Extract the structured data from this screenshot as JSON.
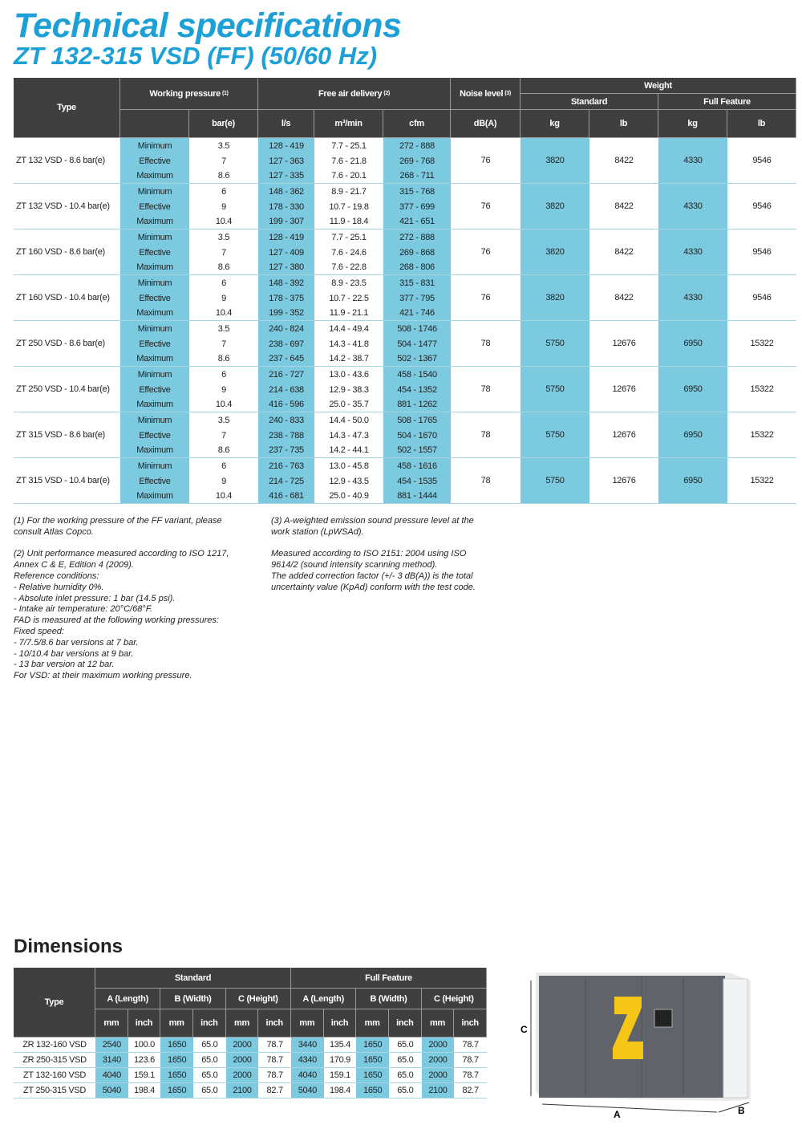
{
  "title": "Technical specifications",
  "subtitle": "ZT 132-315 VSD (FF) (50/60 Hz)",
  "spec": {
    "headers": {
      "type": "Type",
      "working_pressure": "Working pressure",
      "wp_note": "(1)",
      "fad": "Free air delivery",
      "fad_note": "(2)",
      "noise": "Noise level",
      "noise_note": "(3)",
      "weight": "Weight",
      "standard": "Standard",
      "full_feature": "Full Feature",
      "units": [
        "bar(e)",
        "l/s",
        "m³/min",
        "cfm",
        "dB(A)",
        "kg",
        "lb",
        "kg",
        "lb"
      ]
    },
    "groups": [
      {
        "type": "ZT 132 VSD - 8.6 bar(e)",
        "noise": "76",
        "std_kg": "3820",
        "std_lb": "8422",
        "ff_kg": "4330",
        "ff_lb": "9546",
        "levels": [
          {
            "label": "Minimum",
            "pressure": "3.5",
            "ls": "128 - 419",
            "m3": "7.7 - 25.1",
            "cfm": "272 - 888"
          },
          {
            "label": "Effective",
            "pressure": "7",
            "ls": "127 - 363",
            "m3": "7.6 - 21.8",
            "cfm": "269 - 768"
          },
          {
            "label": "Maximum",
            "pressure": "8.6",
            "ls": "127 - 335",
            "m3": "7.6 - 20.1",
            "cfm": "268 - 711"
          }
        ]
      },
      {
        "type": "ZT 132 VSD - 10.4 bar(e)",
        "noise": "76",
        "std_kg": "3820",
        "std_lb": "8422",
        "ff_kg": "4330",
        "ff_lb": "9546",
        "levels": [
          {
            "label": "Minimum",
            "pressure": "6",
            "ls": "148 - 362",
            "m3": "8.9 - 21.7",
            "cfm": "315 - 768"
          },
          {
            "label": "Effective",
            "pressure": "9",
            "ls": "178 - 330",
            "m3": "10.7 - 19.8",
            "cfm": "377 - 699"
          },
          {
            "label": "Maximum",
            "pressure": "10.4",
            "ls": "199 - 307",
            "m3": "11.9 - 18.4",
            "cfm": "421 - 651"
          }
        ]
      },
      {
        "type": "ZT 160 VSD - 8.6 bar(e)",
        "noise": "76",
        "std_kg": "3820",
        "std_lb": "8422",
        "ff_kg": "4330",
        "ff_lb": "9546",
        "levels": [
          {
            "label": "Minimum",
            "pressure": "3.5",
            "ls": "128 - 419",
            "m3": "7.7 - 25.1",
            "cfm": "272 - 888"
          },
          {
            "label": "Effective",
            "pressure": "7",
            "ls": "127 - 409",
            "m3": "7.6 - 24.6",
            "cfm": "269 - 868"
          },
          {
            "label": "Maximum",
            "pressure": "8.6",
            "ls": "127 - 380",
            "m3": "7.6 - 22.8",
            "cfm": "268 - 806"
          }
        ]
      },
      {
        "type": "ZT 160 VSD - 10.4 bar(e)",
        "noise": "76",
        "std_kg": "3820",
        "std_lb": "8422",
        "ff_kg": "4330",
        "ff_lb": "9546",
        "levels": [
          {
            "label": "Minimum",
            "pressure": "6",
            "ls": "148 - 392",
            "m3": "8.9 - 23.5",
            "cfm": "315 - 831"
          },
          {
            "label": "Effective",
            "pressure": "9",
            "ls": "178 - 375",
            "m3": "10.7 - 22.5",
            "cfm": "377 - 795"
          },
          {
            "label": "Maximum",
            "pressure": "10.4",
            "ls": "199 - 352",
            "m3": "11.9 - 21.1",
            "cfm": "421 - 746"
          }
        ]
      },
      {
        "type": "ZT 250 VSD - 8.6 bar(e)",
        "noise": "78",
        "std_kg": "5750",
        "std_lb": "12676",
        "ff_kg": "6950",
        "ff_lb": "15322",
        "levels": [
          {
            "label": "Minimum",
            "pressure": "3.5",
            "ls": "240 - 824",
            "m3": "14.4 - 49.4",
            "cfm": "508 - 1746"
          },
          {
            "label": "Effective",
            "pressure": "7",
            "ls": "238 - 697",
            "m3": "14.3 - 41.8",
            "cfm": "504 - 1477"
          },
          {
            "label": "Maximum",
            "pressure": "8.6",
            "ls": "237 - 645",
            "m3": "14.2 - 38.7",
            "cfm": "502 - 1367"
          }
        ]
      },
      {
        "type": "ZT 250 VSD - 10.4 bar(e)",
        "noise": "78",
        "std_kg": "5750",
        "std_lb": "12676",
        "ff_kg": "6950",
        "ff_lb": "15322",
        "levels": [
          {
            "label": "Minimum",
            "pressure": "6",
            "ls": "216 - 727",
            "m3": "13.0 - 43.6",
            "cfm": "458 - 1540"
          },
          {
            "label": "Effective",
            "pressure": "9",
            "ls": "214 - 638",
            "m3": "12.9 - 38.3",
            "cfm": "454 - 1352"
          },
          {
            "label": "Maximum",
            "pressure": "10.4",
            "ls": "416 - 596",
            "m3": "25.0 - 35.7",
            "cfm": "881 - 1262"
          }
        ]
      },
      {
        "type": "ZT 315 VSD - 8.6 bar(e)",
        "noise": "78",
        "std_kg": "5750",
        "std_lb": "12676",
        "ff_kg": "6950",
        "ff_lb": "15322",
        "levels": [
          {
            "label": "Minimum",
            "pressure": "3.5",
            "ls": "240 - 833",
            "m3": "14.4 - 50.0",
            "cfm": "508 - 1765"
          },
          {
            "label": "Effective",
            "pressure": "7",
            "ls": "238 - 788",
            "m3": "14.3 - 47.3",
            "cfm": "504 - 1670"
          },
          {
            "label": "Maximum",
            "pressure": "8.6",
            "ls": "237 - 735",
            "m3": "14.2 - 44.1",
            "cfm": "502 - 1557"
          }
        ]
      },
      {
        "type": "ZT 315 VSD - 10.4 bar(e)",
        "noise": "78",
        "std_kg": "5750",
        "std_lb": "12676",
        "ff_kg": "6950",
        "ff_lb": "15322",
        "levels": [
          {
            "label": "Minimum",
            "pressure": "6",
            "ls": "216 - 763",
            "m3": "13.0 - 45.8",
            "cfm": "458 - 1616"
          },
          {
            "label": "Effective",
            "pressure": "9",
            "ls": "214 - 725",
            "m3": "12.9 - 43.5",
            "cfm": "454 - 1535"
          },
          {
            "label": "Maximum",
            "pressure": "10.4",
            "ls": "416 - 681",
            "m3": "25.0 - 40.9",
            "cfm": "881 - 1444"
          }
        ]
      }
    ]
  },
  "notes_left": [
    [
      "(1) For the working pressure of the FF variant, please",
      "consult Atlas Copco."
    ],
    [
      "(2) Unit performance measured according to ISO 1217,",
      "Annex C & E, Edition 4 (2009).",
      "Reference conditions:",
      " - Relative humidity 0%.",
      " - Absolute inlet pressure: 1 bar (14.5 psi).",
      " - Intake air temperature: 20°C/68°F.",
      "FAD is measured at the following working pressures:",
      "Fixed speed:",
      " - 7/7.5/8.6 bar versions at 7 bar.",
      " - 10/10.4 bar versions at 9 bar.",
      " - 13 bar version at 12 bar.",
      "For VSD: at their maximum working pressure."
    ]
  ],
  "notes_right": [
    [
      "(3) A-weighted emission sound pressure level at the",
      "work station (LpWSAd)."
    ],
    [
      "Measured according to ISO 2151: 2004 using ISO",
      "9614/2 (sound intensity scanning method).",
      "The added correction factor (+/- 3 dB(A)) is the total",
      "uncertainty value (KpAd) conform with the test code."
    ]
  ],
  "dimensions": {
    "title": "Dimensions",
    "headers": {
      "type": "Type",
      "standard": "Standard",
      "full_feature": "Full Feature",
      "dims": [
        "A (Length)",
        "B (Width)",
        "C (Height)"
      ],
      "units": [
        "mm",
        "inch"
      ]
    },
    "rows": [
      {
        "type": "ZR 132-160 VSD",
        "values": [
          "2540",
          "100.0",
          "1650",
          "65.0",
          "2000",
          "78.7",
          "3440",
          "135.4",
          "1650",
          "65.0",
          "2000",
          "78.7"
        ]
      },
      {
        "type": "ZR 250-315 VSD",
        "values": [
          "3140",
          "123.6",
          "1650",
          "65.0",
          "2000",
          "78.7",
          "4340",
          "170.9",
          "1650",
          "65.0",
          "2000",
          "78.7"
        ]
      },
      {
        "type": "ZT 132-160 VSD",
        "values": [
          "4040",
          "159.1",
          "1650",
          "65.0",
          "2000",
          "78.7",
          "4040",
          "159.1",
          "1650",
          "65.0",
          "2000",
          "78.7"
        ]
      },
      {
        "type": "ZT 250-315 VSD",
        "values": [
          "5040",
          "198.4",
          "1650",
          "65.0",
          "2100",
          "82.7",
          "5040",
          "198.4",
          "1650",
          "65.0",
          "2100",
          "82.7"
        ]
      }
    ]
  },
  "image_labels": {
    "a": "A",
    "b": "B",
    "c": "C"
  }
}
